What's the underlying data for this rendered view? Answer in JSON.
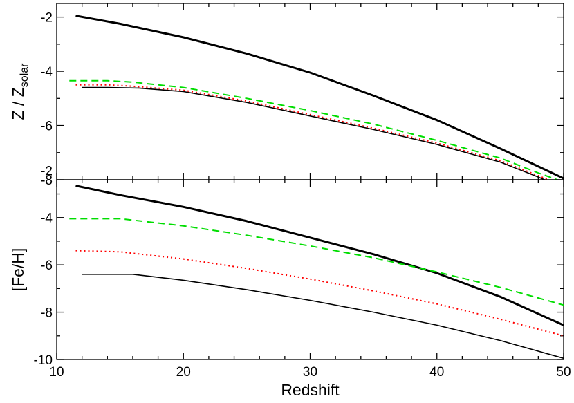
{
  "chart_data": [
    {
      "type": "line",
      "panel": "top",
      "ylabel": "Z / Z",
      "ylabel_sub": "solar",
      "xlim": [
        10,
        50
      ],
      "ylim": [
        -8,
        -1.5
      ],
      "xticks": [
        10,
        20,
        30,
        40,
        50
      ],
      "yticks": [
        -8,
        -6,
        -4,
        -2
      ],
      "ytick_labels": [
        "-8",
        "-6",
        "-4",
        "-2"
      ],
      "series": [
        {
          "style": "solid-thick",
          "color": "#000000",
          "points": [
            [
              11.5,
              -1.95
            ],
            [
              15,
              -2.25
            ],
            [
              20,
              -2.75
            ],
            [
              25,
              -3.35
            ],
            [
              30,
              -4.05
            ],
            [
              35,
              -4.9
            ],
            [
              40,
              -5.8
            ],
            [
              45,
              -6.85
            ],
            [
              50,
              -7.95
            ]
          ]
        },
        {
          "style": "dashed",
          "color": "#00dd00",
          "points": [
            [
              11,
              -4.35
            ],
            [
              14,
              -4.35
            ],
            [
              16,
              -4.4
            ],
            [
              20,
              -4.6
            ],
            [
              25,
              -5.0
            ],
            [
              30,
              -5.45
            ],
            [
              35,
              -5.95
            ],
            [
              40,
              -6.55
            ],
            [
              45,
              -7.2
            ],
            [
              48,
              -7.75
            ],
            [
              49.5,
              -8.0
            ]
          ]
        },
        {
          "style": "dotted",
          "color": "#ff0000",
          "points": [
            [
              11.5,
              -4.5
            ],
            [
              14,
              -4.5
            ],
            [
              16,
              -4.55
            ],
            [
              20,
              -4.7
            ],
            [
              25,
              -5.1
            ],
            [
              30,
              -5.6
            ],
            [
              35,
              -6.1
            ],
            [
              40,
              -6.65
            ],
            [
              45,
              -7.3
            ],
            [
              48,
              -7.85
            ],
            [
              48.8,
              -8.0
            ]
          ]
        },
        {
          "style": "solid-thin",
          "color": "#000000",
          "points": [
            [
              12,
              -4.6
            ],
            [
              14,
              -4.6
            ],
            [
              16.5,
              -4.62
            ],
            [
              20,
              -4.75
            ],
            [
              25,
              -5.15
            ],
            [
              30,
              -5.65
            ],
            [
              35,
              -6.15
            ],
            [
              40,
              -6.7
            ],
            [
              45,
              -7.35
            ],
            [
              48,
              -7.9
            ],
            [
              48.5,
              -8.0
            ]
          ]
        }
      ]
    },
    {
      "type": "line",
      "panel": "bottom",
      "ylabel": "[Fe/H]",
      "xlabel": "Redshift",
      "xlim": [
        10,
        50
      ],
      "ylim": [
        -10,
        -2.4
      ],
      "xticks": [
        10,
        20,
        30,
        40,
        50
      ],
      "xtick_labels": [
        "10",
        "20",
        "30",
        "40",
        "50"
      ],
      "yticks": [
        -10,
        -8,
        -6,
        -4,
        -2
      ],
      "ytick_labels": [
        "-10",
        "-8",
        "-6",
        "-4",
        "-2"
      ],
      "series": [
        {
          "style": "solid-thick",
          "color": "#000000",
          "points": [
            [
              11.5,
              -2.65
            ],
            [
              15,
              -3.05
            ],
            [
              20,
              -3.55
            ],
            [
              25,
              -4.15
            ],
            [
              30,
              -4.85
            ],
            [
              35,
              -5.55
            ],
            [
              40,
              -6.35
            ],
            [
              45,
              -7.35
            ],
            [
              50,
              -8.55
            ]
          ]
        },
        {
          "style": "dashed",
          "color": "#00dd00",
          "points": [
            [
              11,
              -4.05
            ],
            [
              15,
              -4.05
            ],
            [
              20,
              -4.35
            ],
            [
              25,
              -4.75
            ],
            [
              30,
              -5.2
            ],
            [
              35,
              -5.7
            ],
            [
              40,
              -6.3
            ],
            [
              45,
              -6.95
            ],
            [
              50,
              -7.7
            ]
          ]
        },
        {
          "style": "dotted",
          "color": "#ff0000",
          "points": [
            [
              11.5,
              -5.4
            ],
            [
              15,
              -5.45
            ],
            [
              20,
              -5.75
            ],
            [
              25,
              -6.15
            ],
            [
              30,
              -6.6
            ],
            [
              35,
              -7.1
            ],
            [
              40,
              -7.65
            ],
            [
              45,
              -8.3
            ],
            [
              50,
              -9.0
            ]
          ]
        },
        {
          "style": "solid-thin",
          "color": "#000000",
          "points": [
            [
              12,
              -6.4
            ],
            [
              16,
              -6.4
            ],
            [
              20,
              -6.65
            ],
            [
              25,
              -7.05
            ],
            [
              30,
              -7.5
            ],
            [
              35,
              -8.0
            ],
            [
              40,
              -8.55
            ],
            [
              45,
              -9.2
            ],
            [
              50,
              -9.95
            ]
          ]
        }
      ]
    }
  ]
}
